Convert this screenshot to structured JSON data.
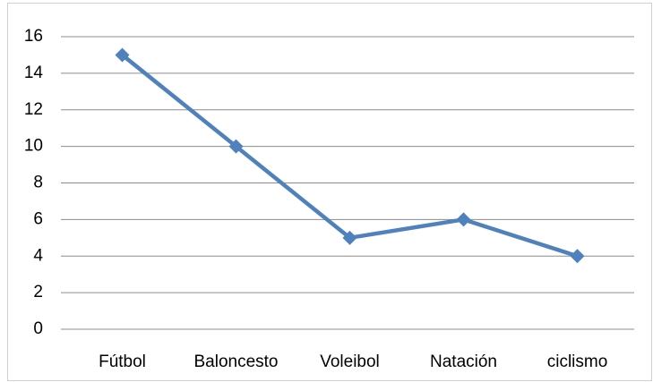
{
  "chart_data": {
    "type": "line",
    "categories": [
      "Fútbol",
      "Baloncesto",
      "Voleibol",
      "Natación",
      "ciclismo"
    ],
    "values": [
      15,
      10,
      5,
      6,
      4
    ],
    "color": "#4f81bd",
    "ylim": [
      0,
      16
    ],
    "yticks": [
      0,
      2,
      4,
      6,
      8,
      10,
      12,
      14,
      16
    ],
    "grid": true
  }
}
